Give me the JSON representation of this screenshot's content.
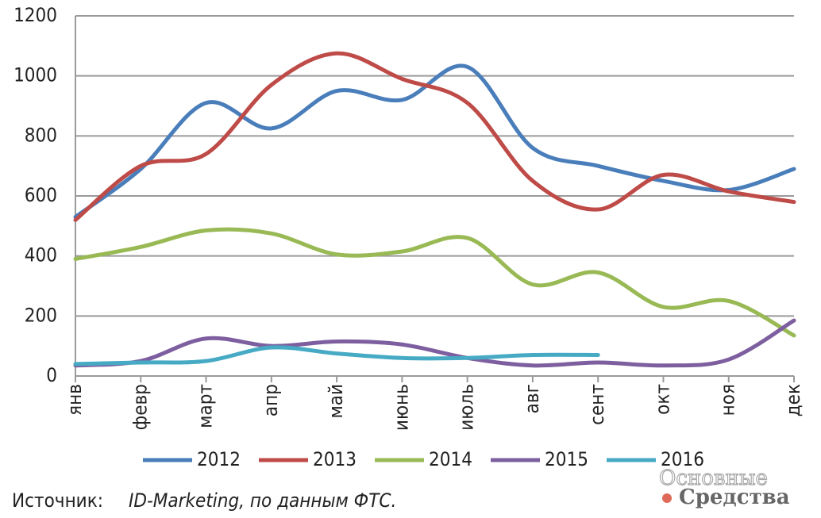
{
  "chart_data": {
    "type": "line",
    "categories": [
      "янв",
      "февр",
      "март",
      "апр",
      "май",
      "июнь",
      "июль",
      "авг",
      "сент",
      "окт",
      "ноя",
      "дек"
    ],
    "series": [
      {
        "name": "2012",
        "color": "#4a7ebb",
        "values": [
          530,
          690,
          910,
          825,
          950,
          920,
          1030,
          760,
          700,
          650,
          620,
          690
        ]
      },
      {
        "name": "2013",
        "color": "#be4b48",
        "values": [
          520,
          700,
          740,
          970,
          1075,
          990,
          910,
          650,
          555,
          670,
          615,
          580
        ]
      },
      {
        "name": "2014",
        "color": "#98b954",
        "values": [
          390,
          430,
          485,
          475,
          405,
          415,
          460,
          305,
          345,
          230,
          250,
          135
        ]
      },
      {
        "name": "2015",
        "color": "#7d5fa0",
        "values": [
          35,
          50,
          125,
          100,
          115,
          105,
          60,
          35,
          45,
          35,
          55,
          185
        ]
      },
      {
        "name": "2016",
        "color": "#46aac5",
        "values": [
          40,
          45,
          50,
          95,
          75,
          60,
          60,
          70,
          70,
          null,
          null,
          null
        ]
      }
    ],
    "ylim": [
      0,
      1200
    ],
    "yticks": [
      0,
      200,
      400,
      600,
      800,
      1000,
      1200
    ],
    "grid": true,
    "source_label": "Источник:",
    "source_text": "ID-Marketing, по данным ФТС.",
    "watermark": [
      "Основные",
      "Средства"
    ]
  }
}
